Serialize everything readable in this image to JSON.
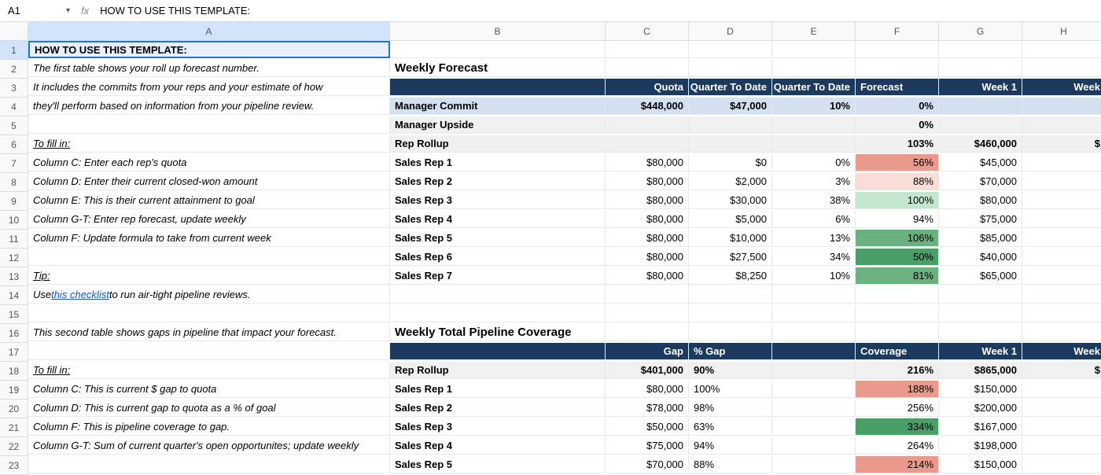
{
  "formula_bar": {
    "cell_ref": "A1",
    "fx": "fx",
    "value": "HOW TO USE THIS TEMPLATE:"
  },
  "columns": [
    "A",
    "B",
    "C",
    "D",
    "E",
    "F",
    "G",
    "H"
  ],
  "rows_count": 23,
  "colA": {
    "1": "HOW TO USE THIS TEMPLATE:",
    "2": "The first table shows your roll up forecast number.",
    "3": "It includes the commits from your reps and your estimate of how",
    "4": "they'll perform based on information from your pipeline review.",
    "6": "To fill in:",
    "7": "Column C: Enter each rep's quota",
    "8": "Column D: Enter their current closed-won amount",
    "9": "Column E: This is their current attainment to goal",
    "10": "Column G-T: Enter rep forecast, update weekly",
    "11": "Column F: Update formula to take from current week",
    "13": "Tip:",
    "14a": "Use ",
    "14b": "this checklist",
    "14c": " to run air-tight pipeline reviews.",
    "16": "This second table shows gaps in pipeline that impact your forecast.",
    "18": "To fill in:",
    "19": "Column C: This is current $ gap to quota",
    "20": "Column D: This is current gap to quota as a % of goal",
    "21": "Column F: This is pipeline coverage to gap.",
    "22": "Column G-T: Sum of current quarter's open opportunites; update weekly"
  },
  "section1": {
    "title": "Weekly Forecast",
    "headers": {
      "c": "Quota",
      "d": "$ Quarter To Date",
      "e": "% Quarter To Date",
      "f": "Forecast",
      "g": "Week 1",
      "h": "Week"
    },
    "rows": {
      "4": {
        "b": "Manager Commit",
        "c": "$448,000",
        "d": "$47,000",
        "e": "10%",
        "f": "0%",
        "g": "",
        "h": ""
      },
      "5": {
        "b": "Manager Upside",
        "c": "",
        "d": "",
        "e": "",
        "f": "0%",
        "g": "",
        "h": ""
      },
      "6": {
        "b": "Rep Rollup",
        "c": "",
        "d": "",
        "e": "",
        "f": "103%",
        "g": "$460,000",
        "h": "$"
      },
      "7": {
        "b": "Sales Rep 1",
        "c": "$80,000",
        "d": "$0",
        "e": "0%",
        "f": "56%",
        "g": "$45,000",
        "h": ""
      },
      "8": {
        "b": "Sales Rep 2",
        "c": "$80,000",
        "d": "$2,000",
        "e": "3%",
        "f": "88%",
        "g": "$70,000",
        "h": ""
      },
      "9": {
        "b": "Sales Rep 3",
        "c": "$80,000",
        "d": "$30,000",
        "e": "38%",
        "f": "100%",
        "g": "$80,000",
        "h": ""
      },
      "10": {
        "b": "Sales Rep 4",
        "c": "$80,000",
        "d": "$5,000",
        "e": "6%",
        "f": "94%",
        "g": "$75,000",
        "h": ""
      },
      "11": {
        "b": "Sales Rep 5",
        "c": "$80,000",
        "d": "$10,000",
        "e": "13%",
        "f": "106%",
        "g": "$85,000",
        "h": ""
      },
      "12": {
        "b": "Sales Rep 6",
        "c": "$80,000",
        "d": "$27,500",
        "e": "34%",
        "f": "50%",
        "g": "$40,000",
        "h": ""
      },
      "13": {
        "b": "Sales Rep 7",
        "c": "$80,000",
        "d": "$8,250",
        "e": "10%",
        "f": "81%",
        "g": "$65,000",
        "h": ""
      }
    }
  },
  "section2": {
    "title": "Weekly Total Pipeline Coverage",
    "headers": {
      "c": "Gap",
      "d": "% Gap",
      "e": "",
      "f": "Coverage",
      "g": "Week 1",
      "h": "Week"
    },
    "rows": {
      "18": {
        "b": "Rep Rollup",
        "c": "$401,000",
        "d": "90%",
        "e": "",
        "f": "216%",
        "g": "$865,000",
        "h": "$"
      },
      "19": {
        "b": "Sales Rep 1",
        "c": "$80,000",
        "d": "100%",
        "e": "",
        "f": "188%",
        "g": "$150,000",
        "h": ""
      },
      "20": {
        "b": "Sales Rep 2",
        "c": "$78,000",
        "d": "98%",
        "e": "",
        "f": "256%",
        "g": "$200,000",
        "h": ""
      },
      "21": {
        "b": "Sales Rep 3",
        "c": "$50,000",
        "d": "63%",
        "e": "",
        "f": "334%",
        "g": "$167,000",
        "h": ""
      },
      "22": {
        "b": "Sales Rep 4",
        "c": "$75,000",
        "d": "94%",
        "e": "",
        "f": "264%",
        "g": "$198,000",
        "h": ""
      },
      "23": {
        "b": "Sales Rep 5",
        "c": "$70,000",
        "d": "88%",
        "e": "",
        "f": "214%",
        "g": "$150,000",
        "h": ""
      }
    }
  },
  "cell_colors": {
    "s1": {
      "7": "cell-red",
      "8": "cell-pink",
      "9": "cell-lgreen",
      "10": "",
      "11": "cell-green",
      "12": "cell-dgreen",
      "13": "cell-green"
    },
    "s2": {
      "18": "",
      "19": "cell-red",
      "20": "",
      "21": "cell-dgreen",
      "22": "",
      "23": "cell-red"
    }
  }
}
